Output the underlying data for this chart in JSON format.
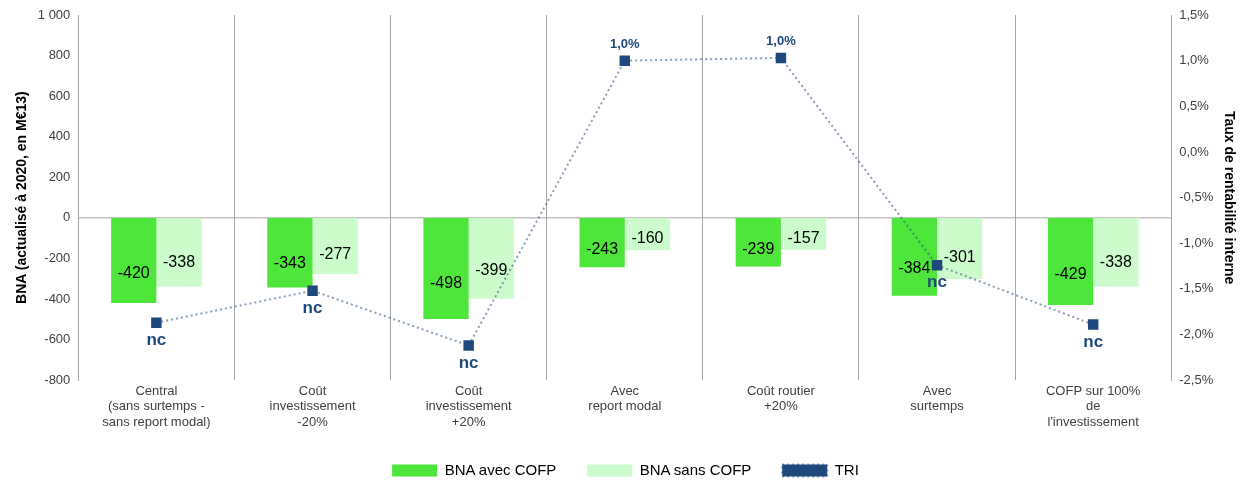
{
  "chart_data": {
    "type": "bar",
    "xlabel": null,
    "ylabel": "BNA (actualisé à 2020, en M€13)",
    "y2label": "Taux de rentabilité interne",
    "categories": [
      "Central\n(sans surtemps -\nsans report modal)",
      "Coût\ninvestissement\n-20%",
      "Coût\ninvestissement\n+20%",
      "Avec\nreport modal",
      "Coût routier\n+20%",
      "Avec\nsurtemps",
      "COFP sur 100%\nde\nl'investissement"
    ],
    "series": [
      {
        "name": "BNA avec COFP",
        "color": "#4fe63c",
        "values": [
          -420,
          -343,
          -498,
          -243,
          -239,
          -384,
          -429
        ]
      },
      {
        "name": "BNA sans COFP",
        "color": "#ccfccc",
        "values": [
          -338,
          -277,
          -399,
          -160,
          -157,
          -301,
          -338
        ]
      },
      {
        "name": "TRI",
        "type": "line",
        "axis": "y2",
        "color": "#1f497d",
        "line_style": "dotted",
        "marker": "square",
        "values": [
          -1.87,
          -1.52,
          -2.12,
          1.0,
          1.03,
          -1.24,
          -1.89
        ],
        "value_labels": [
          "nc",
          "nc",
          "nc",
          "1,0%",
          "1,0%",
          "nc",
          "nc"
        ]
      }
    ],
    "data_labels": true,
    "ylim": [
      -800,
      1000
    ],
    "yticks": [
      -800,
      -600,
      -400,
      -200,
      0,
      200,
      400,
      600,
      800,
      {
        "value": 1000,
        "label": "1 000"
      }
    ],
    "y2lim": [
      -2.5,
      1.5
    ],
    "y2ticks": [
      {
        "value": -2.5,
        "label": "-2,5%"
      },
      {
        "value": -2.0,
        "label": "-2,0%"
      },
      {
        "value": -1.5,
        "label": "-1,5%"
      },
      {
        "value": -1.0,
        "label": "-1,0%"
      },
      {
        "value": -0.5,
        "label": "-0,5%"
      },
      {
        "value": 0,
        "label": "0,0%"
      },
      {
        "value": 0.5,
        "label": "0,5%"
      },
      {
        "value": 1.0,
        "label": "1,0%"
      },
      {
        "value": 1.5,
        "label": "1,5%"
      }
    ],
    "ref_lines": [
      {
        "axis": "y",
        "value": 0,
        "color": "#a6a6a6"
      }
    ],
    "grid": "x",
    "legend": "bottom"
  }
}
